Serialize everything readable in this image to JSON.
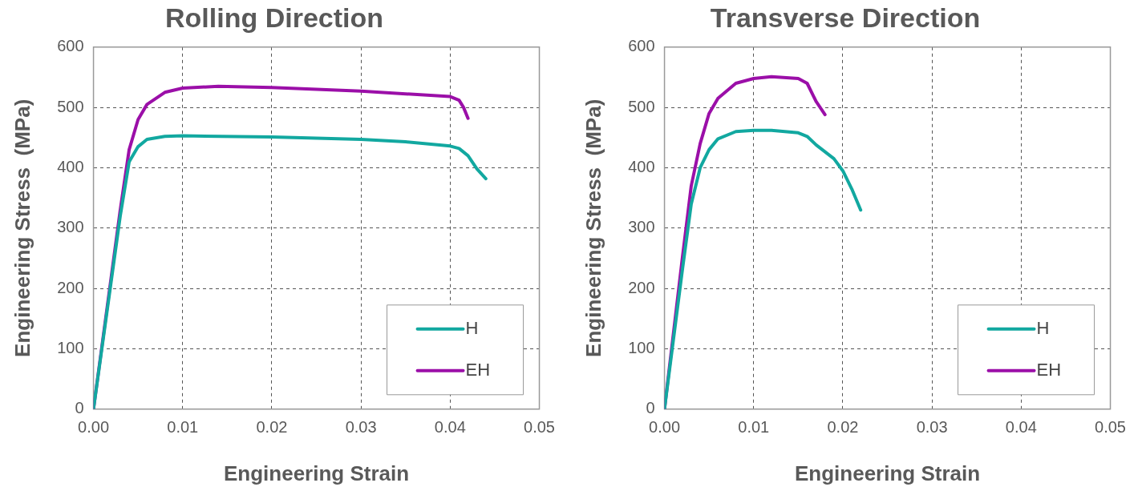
{
  "chart_data": [
    {
      "type": "line",
      "title": "Rolling Direction",
      "xlabel": "Engineering Strain",
      "ylabel": "Engineering Stress  (MPa)",
      "xlim": [
        0,
        0.05
      ],
      "xticks": [
        {
          "value": 0,
          "label": "0.00"
        },
        0.01,
        0.02,
        0.03,
        0.04,
        0.05
      ],
      "ylim": [
        0,
        600
      ],
      "yticks": [
        0,
        100,
        200,
        300,
        400,
        500,
        600
      ],
      "grid": true,
      "legend": "bottom right",
      "line_style": "solid",
      "marker": "none",
      "series": [
        {
          "name": "H",
          "color": "#12a8a0",
          "x": [
            0,
            0.003,
            0.004,
            0.005,
            0.006,
            0.008,
            0.01,
            0.02,
            0.03,
            0.035,
            0.04,
            0.041,
            0.042,
            0.043,
            0.044
          ],
          "values": [
            0,
            320,
            410,
            435,
            447,
            452,
            453,
            451,
            447,
            443,
            436,
            432,
            420,
            398,
            382
          ]
        },
        {
          "name": "EH",
          "color": "#9b0fa8",
          "x": [
            0,
            0.003,
            0.004,
            0.005,
            0.006,
            0.008,
            0.01,
            0.014,
            0.02,
            0.03,
            0.04,
            0.041,
            0.0415,
            0.042
          ],
          "values": [
            0,
            330,
            430,
            480,
            505,
            525,
            532,
            535,
            533,
            527,
            518,
            512,
            500,
            482
          ]
        }
      ]
    },
    {
      "type": "line",
      "title": "Transverse Direction",
      "xlabel": "Engineering Strain",
      "ylabel": "Engineering Stress  (MPa)",
      "xlim": [
        0,
        0.05
      ],
      "xticks": [
        {
          "value": 0,
          "label": "0.00"
        },
        0.01,
        0.02,
        0.03,
        0.04,
        0.05
      ],
      "ylim": [
        0,
        600
      ],
      "yticks": [
        0,
        100,
        200,
        300,
        400,
        500,
        600
      ],
      "grid": true,
      "legend": "bottom right",
      "line_style": "solid",
      "marker": "none",
      "series": [
        {
          "name": "H",
          "color": "#12a8a0",
          "x": [
            0,
            0.002,
            0.003,
            0.004,
            0.005,
            0.006,
            0.008,
            0.01,
            0.012,
            0.015,
            0.016,
            0.017,
            0.019,
            0.02,
            0.021,
            0.022
          ],
          "values": [
            0,
            230,
            340,
            400,
            430,
            448,
            460,
            462,
            462,
            458,
            452,
            438,
            415,
            395,
            365,
            330
          ]
        },
        {
          "name": "EH",
          "color": "#9b0fa8",
          "x": [
            0,
            0.002,
            0.003,
            0.004,
            0.005,
            0.006,
            0.008,
            0.01,
            0.012,
            0.015,
            0.016,
            0.017,
            0.018
          ],
          "values": [
            0,
            250,
            370,
            440,
            490,
            515,
            540,
            548,
            551,
            548,
            540,
            510,
            488
          ]
        }
      ]
    }
  ]
}
